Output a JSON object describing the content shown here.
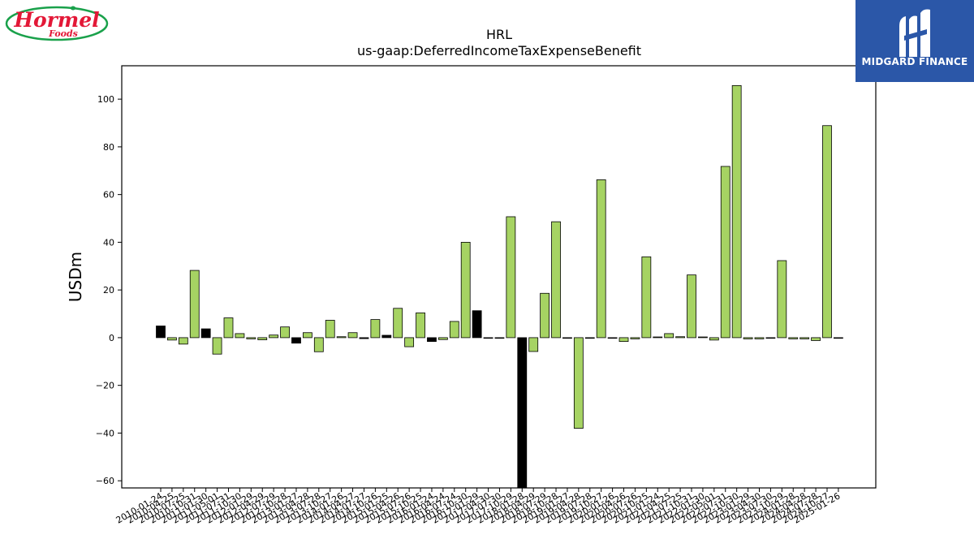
{
  "logos": {
    "left": {
      "brand": "Hormel",
      "sub": "Foods",
      "color": "#e31837",
      "ring": "#1aa14b"
    },
    "right": {
      "text": "MIDGARD FINANCE",
      "bg": "#2b57a8"
    }
  },
  "chart_data": {
    "type": "bar",
    "title": "HRL",
    "subtitle": "us-gaap:DeferredIncomeTaxExpenseBenefit",
    "ylabel": "USDm",
    "xlabel": "",
    "ylim": [
      -63,
      114
    ],
    "yticks": [
      -60,
      -40,
      -20,
      0,
      20,
      40,
      60,
      80,
      100
    ],
    "grid": false,
    "colors": {
      "positive_bar": "#a6d363",
      "highlight_bar": "#000000",
      "edge": "#000000"
    },
    "categories": [
      "2010-01-24",
      "2010-04-25",
      "2010-07-25",
      "2010-10-31",
      "2011-01-30",
      "2011-05-01",
      "2011-07-31",
      "2011-10-30",
      "2012-01-29",
      "2012-04-29",
      "2012-07-29",
      "2012-10-28",
      "2013-01-27",
      "2013-04-28",
      "2013-07-28",
      "2013-10-27",
      "2014-01-26",
      "2014-04-27",
      "2014-07-27",
      "2014-10-26",
      "2015-01-25",
      "2015-04-26",
      "2015-07-26",
      "2015-10-25",
      "2016-01-24",
      "2016-04-24",
      "2016-07-24",
      "2016-10-30",
      "2017-01-29",
      "2017-04-30",
      "2017-07-30",
      "2017-10-29",
      "2018-01-28",
      "2018-04-29",
      "2018-07-29",
      "2018-10-28",
      "2019-01-27",
      "2019-04-28",
      "2019-07-28",
      "2019-10-27",
      "2020-01-26",
      "2020-04-26",
      "2020-07-26",
      "2020-10-25",
      "2021-01-24",
      "2021-04-25",
      "2021-07-25",
      "2021-10-31",
      "2022-01-30",
      "2022-05-01",
      "2022-07-31",
      "2022-10-30",
      "2023-01-29",
      "2023-04-30",
      "2023-07-30",
      "2023-10-29",
      "2024-01-28",
      "2024-04-28",
      "2024-07-28",
      "2024-10-27",
      "2025-01-26"
    ],
    "values": [
      4.9,
      -1.0,
      -2.7,
      28.2,
      3.7,
      -6.9,
      8.3,
      1.7,
      -0.5,
      -0.9,
      1.1,
      4.5,
      -2.3,
      2.1,
      -5.9,
      7.3,
      0.4,
      2.1,
      -0.4,
      7.6,
      1.0,
      12.3,
      -3.8,
      10.4,
      -1.6,
      -0.8,
      6.8,
      40.0,
      11.3,
      0.0,
      0.0,
      50.7,
      -63.0,
      -5.8,
      18.6,
      48.6,
      0.0,
      -38.0,
      0.0,
      66.2,
      0.0,
      -1.6,
      -0.5,
      33.9,
      0.3,
      1.7,
      0.4,
      26.3,
      0.3,
      -1.0,
      71.8,
      105.7,
      -0.5,
      -0.5,
      0.0,
      32.3,
      -0.5,
      -0.5,
      -1.2,
      88.9,
      0.0
    ],
    "highlight_indices": [
      0,
      4,
      12,
      18,
      20,
      24,
      28,
      32
    ]
  }
}
